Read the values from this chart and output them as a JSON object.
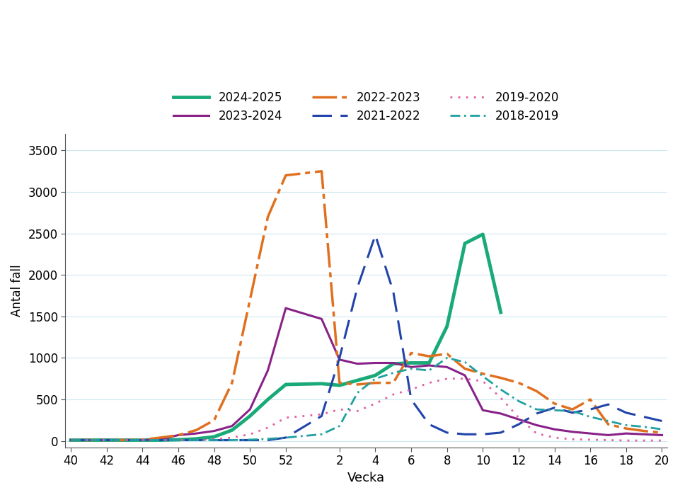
{
  "title": "",
  "ylabel": "Antal fall",
  "xlabel": "Vecka",
  "xtick_labels": [
    "40",
    "42",
    "44",
    "46",
    "48",
    "50",
    "52",
    "2",
    "4",
    "6",
    "8",
    "10",
    "12",
    "14",
    "16",
    "18",
    "20"
  ],
  "yticks": [
    0,
    500,
    1000,
    1500,
    2000,
    2500,
    3000,
    3500
  ],
  "ylim": [
    -80,
    3700
  ],
  "background_color": "#ffffff",
  "grid_color": "#cce8f0",
  "series": {
    "2024-2025": {
      "color": "#1aaa78",
      "linewidth": 3.5,
      "x": [
        40,
        41,
        42,
        43,
        44,
        45,
        46,
        47,
        48,
        49,
        50,
        51,
        52,
        1,
        2,
        3,
        4,
        5,
        6,
        7,
        8,
        9,
        10,
        11
      ],
      "y": [
        10,
        10,
        10,
        10,
        10,
        10,
        15,
        25,
        50,
        130,
        300,
        500,
        680,
        690,
        670,
        730,
        790,
        930,
        940,
        940,
        1380,
        2380,
        2490,
        1550
      ]
    },
    "2023-2024": {
      "color": "#882288",
      "linewidth": 2.2,
      "x": [
        40,
        41,
        42,
        43,
        44,
        45,
        46,
        47,
        48,
        49,
        50,
        51,
        52,
        1,
        2,
        3,
        4,
        5,
        6,
        7,
        8,
        9,
        10,
        11,
        12,
        13,
        14,
        15,
        16,
        17,
        18,
        19,
        20
      ],
      "y": [
        10,
        10,
        10,
        10,
        10,
        20,
        70,
        90,
        120,
        180,
        380,
        850,
        1600,
        1470,
        980,
        930,
        940,
        940,
        890,
        910,
        890,
        790,
        370,
        330,
        260,
        190,
        140,
        110,
        90,
        70,
        90,
        80,
        70
      ]
    },
    "2022-2023": {
      "color": "#e07020",
      "linewidth": 2.5,
      "x": [
        40,
        41,
        42,
        43,
        44,
        45,
        46,
        47,
        48,
        49,
        50,
        51,
        52,
        1,
        2,
        3,
        4,
        5,
        6,
        7,
        8,
        9,
        10,
        11,
        12,
        13,
        14,
        15,
        16,
        17,
        18,
        19,
        20
      ],
      "y": [
        10,
        10,
        10,
        10,
        15,
        40,
        70,
        130,
        250,
        700,
        1700,
        2700,
        3200,
        3250,
        700,
        680,
        700,
        700,
        1060,
        1020,
        1050,
        870,
        810,
        760,
        700,
        600,
        450,
        380,
        500,
        200,
        150,
        120,
        100
      ]
    },
    "2021-2022": {
      "color": "#2244aa",
      "linewidth": 2.2,
      "x": [
        40,
        41,
        42,
        43,
        44,
        45,
        46,
        47,
        48,
        49,
        50,
        51,
        52,
        1,
        2,
        3,
        4,
        5,
        6,
        7,
        8,
        9,
        10,
        11,
        12,
        13,
        14,
        15,
        16,
        17,
        18,
        19,
        20
      ],
      "y": [
        10,
        10,
        10,
        10,
        10,
        10,
        10,
        10,
        10,
        10,
        10,
        10,
        40,
        300,
        1000,
        1850,
        2480,
        1800,
        500,
        200,
        100,
        80,
        80,
        100,
        200,
        330,
        400,
        340,
        380,
        440,
        340,
        290,
        240
      ]
    },
    "2019-2020": {
      "color": "#e060a0",
      "linewidth": 2.0,
      "x": [
        40,
        41,
        42,
        43,
        44,
        45,
        46,
        47,
        48,
        49,
        50,
        51,
        52,
        1,
        2,
        3,
        4,
        5,
        6,
        7,
        8,
        9,
        10,
        11,
        12,
        13,
        14,
        15,
        16,
        17,
        18,
        19,
        20
      ],
      "y": [
        10,
        10,
        10,
        10,
        10,
        10,
        10,
        10,
        20,
        40,
        80,
        160,
        280,
        320,
        380,
        360,
        450,
        560,
        620,
        700,
        750,
        750,
        720,
        520,
        280,
        90,
        40,
        20,
        15,
        10,
        5,
        5,
        5
      ]
    },
    "2018-2019": {
      "color": "#20a0a0",
      "linewidth": 2.0,
      "x": [
        40,
        41,
        42,
        43,
        44,
        45,
        46,
        47,
        48,
        49,
        50,
        51,
        52,
        1,
        2,
        3,
        4,
        5,
        6,
        7,
        8,
        9,
        10,
        11,
        12,
        13,
        14,
        15,
        16,
        17,
        18,
        19,
        20
      ],
      "y": [
        10,
        10,
        10,
        10,
        10,
        10,
        10,
        10,
        10,
        10,
        15,
        25,
        40,
        80,
        180,
        580,
        750,
        820,
        870,
        850,
        1000,
        950,
        780,
        620,
        480,
        380,
        370,
        360,
        290,
        240,
        190,
        170,
        140
      ]
    }
  },
  "legend_order": [
    "2024-2025",
    "2023-2024",
    "2022-2023",
    "2021-2022",
    "2019-2020",
    "2018-2019"
  ],
  "legend_styles": {
    "2024-2025": {
      "color": "#1aaa78",
      "lw": 3.5,
      "ls": "-",
      "dashes": null
    },
    "2023-2024": {
      "color": "#882288",
      "lw": 2.2,
      "ls": "-",
      "dashes": null
    },
    "2022-2023": {
      "color": "#e07020",
      "lw": 2.5,
      "ls": "-.",
      "dashes": [
        10,
        2,
        2,
        2
      ]
    },
    "2021-2022": {
      "color": "#2244aa",
      "lw": 2.2,
      "ls": "--",
      "dashes": [
        9,
        4
      ]
    },
    "2019-2020": {
      "color": "#e060a0",
      "lw": 2.0,
      "ls": ":",
      "dashes": [
        1,
        3
      ]
    },
    "2018-2019": {
      "color": "#20a0a0",
      "lw": 2.0,
      "ls": "-.",
      "dashes": [
        5,
        2,
        1,
        2
      ]
    }
  }
}
